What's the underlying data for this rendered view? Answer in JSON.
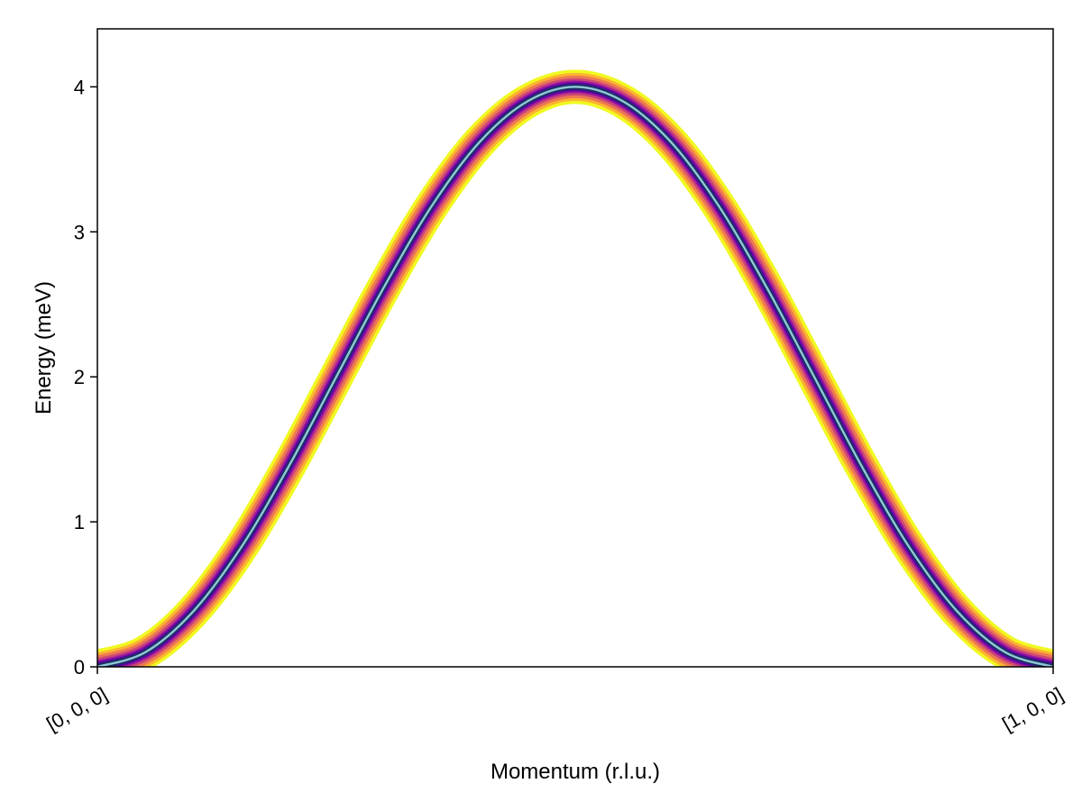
{
  "chart_data": {
    "type": "heatmap",
    "title": "",
    "xlabel": "Momentum (r.l.u.)",
    "ylabel": "Energy (meV)",
    "xlim": [
      0,
      1
    ],
    "ylim": [
      0,
      4.4
    ],
    "x_ticks": [
      {
        "value": 0,
        "label": "[0, 0, 0]"
      },
      {
        "value": 1,
        "label": "[1, 0, 0]"
      }
    ],
    "y_ticks": [
      {
        "value": 0,
        "label": "0"
      },
      {
        "value": 1,
        "label": "1"
      },
      {
        "value": 2,
        "label": "2"
      },
      {
        "value": 3,
        "label": "3"
      },
      {
        "value": 4,
        "label": "4"
      }
    ],
    "grid": false,
    "dispersion": {
      "x": [
        0,
        0.05,
        0.1,
        0.15,
        0.2,
        0.25,
        0.3,
        0.35,
        0.4,
        0.45,
        0.5,
        0.55,
        0.6,
        0.65,
        0.7,
        0.75,
        0.8,
        0.85,
        0.9,
        0.95,
        1
      ],
      "energy": [
        0.0,
        0.1,
        0.38,
        0.82,
        1.38,
        2.0,
        2.62,
        3.18,
        3.62,
        3.9,
        4.0,
        3.9,
        3.62,
        3.18,
        2.62,
        2.0,
        1.38,
        0.82,
        0.38,
        0.1,
        0.0
      ],
      "line_color": "#8fc6d8"
    },
    "intensity_colors": [
      "#f0f921",
      "#fdb42f",
      "#ed7953",
      "#cc4778",
      "#9c179e",
      "#5c01a6",
      "#2a2a7a",
      "#1a2a5a"
    ]
  }
}
